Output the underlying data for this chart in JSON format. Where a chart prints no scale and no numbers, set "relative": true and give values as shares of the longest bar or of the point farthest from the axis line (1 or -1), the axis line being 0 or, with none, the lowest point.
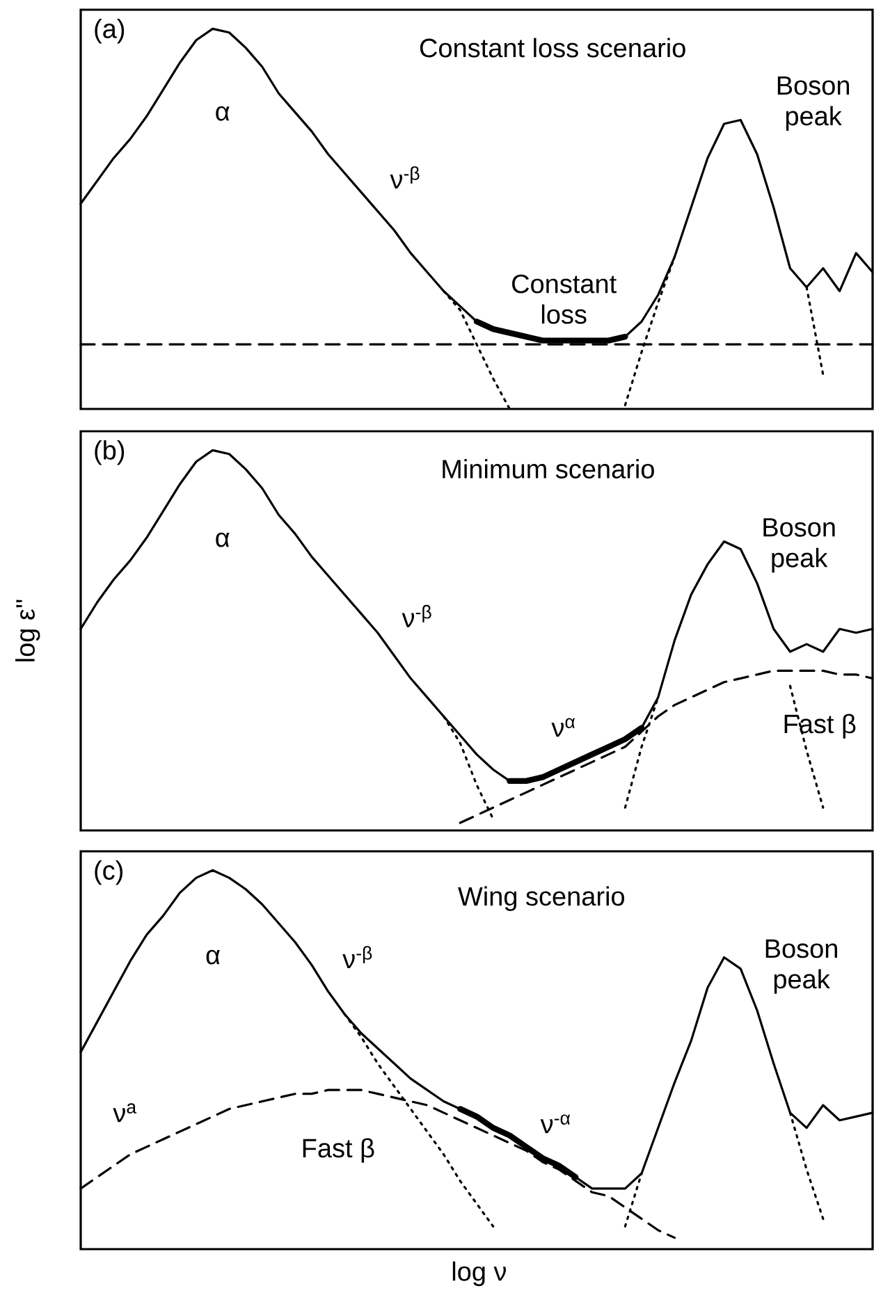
{
  "chart_data": [
    {
      "type": "line",
      "title": "Constant loss scenario",
      "relative": true,
      "tick_labels": false,
      "marker": "none",
      "categories": [
        null,
        null,
        null,
        null,
        null,
        null,
        null,
        null,
        null,
        null,
        null,
        null,
        null,
        null,
        null,
        null,
        null,
        null,
        null,
        null,
        null,
        null,
        null,
        null,
        null,
        null,
        null,
        null,
        null,
        null,
        null,
        null,
        null,
        null,
        null,
        null,
        null,
        null,
        null,
        null,
        null,
        null,
        null,
        null,
        null,
        null,
        null,
        null,
        null
      ],
      "annotations": [
        "(a)",
        "α",
        "ν$^{-β}$",
        "Constant loss",
        "Boson peak"
      ],
      "series": [
        {
          "color": "#000000",
          "line_style": "solid",
          "values": [
            0.54,
            0.6,
            0.66,
            0.71,
            0.77,
            0.84,
            0.91,
            0.97,
            1.0,
            0.99,
            0.95,
            0.9,
            0.83,
            0.78,
            0.73,
            0.67,
            0.62,
            0.57,
            0.52,
            0.47,
            0.41,
            0.36,
            0.31,
            0.27,
            0.23,
            0.21,
            0.2,
            0.19,
            0.18,
            0.18,
            0.18,
            0.18,
            0.18,
            0.19,
            0.23,
            0.3,
            0.4,
            0.53,
            0.66,
            0.75,
            0.76,
            0.67,
            0.53,
            0.37,
            0.32,
            0.37,
            0.31,
            0.41,
            0.36
          ]
        },
        {
          "color": "#000000",
          "line_style": "solid",
          "values": [
            null,
            null,
            null,
            null,
            null,
            null,
            null,
            null,
            null,
            null,
            null,
            null,
            null,
            null,
            null,
            null,
            null,
            null,
            null,
            null,
            null,
            null,
            null,
            null,
            0.23,
            0.21,
            0.2,
            0.19,
            0.18,
            0.18,
            0.18,
            0.18,
            0.18,
            0.19,
            null,
            null,
            null,
            null,
            null,
            null,
            null,
            null,
            null,
            null,
            null,
            null,
            null,
            null,
            null
          ]
        },
        {
          "color": "#000000",
          "line_style": "dashed",
          "values": [
            0.17,
            0.17,
            0.17,
            0.17,
            0.17,
            0.17,
            0.17,
            0.17,
            0.17,
            0.17,
            0.17,
            0.17,
            0.17,
            0.17,
            0.17,
            0.17,
            0.17,
            0.17,
            0.17,
            0.17,
            0.17,
            0.17,
            0.17,
            0.17,
            0.17,
            0.17,
            0.17,
            0.17,
            0.17,
            0.17,
            0.17,
            0.17,
            0.17,
            0.17,
            0.17,
            0.17,
            0.17,
            0.17,
            0.17,
            0.17,
            0.17,
            0.17,
            0.17,
            0.17,
            0.17,
            0.17,
            0.17,
            0.17,
            0.17
          ]
        },
        {
          "color": "#000000",
          "line_style": "dotted",
          "values": [
            null,
            null,
            null,
            null,
            null,
            null,
            null,
            null,
            null,
            null,
            null,
            null,
            null,
            null,
            null,
            null,
            null,
            null,
            null,
            null,
            null,
            null,
            0.31,
            0.26,
            0.17,
            0.08,
            0.0,
            null,
            null,
            null,
            null,
            null,
            null,
            null,
            null,
            null,
            null,
            null,
            null,
            null,
            null,
            null,
            null,
            null,
            null,
            null,
            null,
            null,
            null
          ]
        },
        {
          "color": "#000000",
          "line_style": "dotted",
          "values": [
            null,
            null,
            null,
            null,
            null,
            null,
            null,
            null,
            null,
            null,
            null,
            null,
            null,
            null,
            null,
            null,
            null,
            null,
            null,
            null,
            null,
            null,
            null,
            null,
            null,
            null,
            null,
            null,
            null,
            null,
            null,
            null,
            null,
            0.01,
            0.15,
            0.28,
            0.4,
            null,
            null,
            null,
            null,
            null,
            null,
            null,
            null,
            null,
            null,
            null,
            null
          ]
        },
        {
          "color": "#000000",
          "line_style": "dotted",
          "values": [
            null,
            null,
            null,
            null,
            null,
            null,
            null,
            null,
            null,
            null,
            null,
            null,
            null,
            null,
            null,
            null,
            null,
            null,
            null,
            null,
            null,
            null,
            null,
            null,
            null,
            null,
            null,
            null,
            null,
            null,
            null,
            null,
            null,
            null,
            null,
            null,
            null,
            null,
            null,
            null,
            null,
            null,
            null,
            null,
            0.32,
            0.09,
            null,
            null,
            null
          ]
        }
      ]
    },
    {
      "type": "line",
      "title": "Minimum scenario",
      "ylabel": "log ε''",
      "relative": true,
      "tick_labels": false,
      "marker": "none",
      "categories": [
        null,
        null,
        null,
        null,
        null,
        null,
        null,
        null,
        null,
        null,
        null,
        null,
        null,
        null,
        null,
        null,
        null,
        null,
        null,
        null,
        null,
        null,
        null,
        null,
        null,
        null,
        null,
        null,
        null,
        null,
        null,
        null,
        null,
        null,
        null,
        null,
        null,
        null,
        null,
        null,
        null,
        null,
        null,
        null,
        null,
        null,
        null,
        null,
        null
      ],
      "annotations": [
        "(b)",
        "α",
        "ν$^{-β}$",
        "ν$^{α}$",
        "Boson peak",
        "Fast β"
      ],
      "series": [
        {
          "color": "#000000",
          "line_style": "solid",
          "values": [
            0.53,
            0.6,
            0.66,
            0.71,
            0.77,
            0.84,
            0.91,
            0.97,
            1.0,
            0.99,
            0.95,
            0.9,
            0.83,
            0.78,
            0.72,
            0.67,
            0.62,
            0.57,
            0.52,
            0.46,
            0.4,
            0.35,
            0.3,
            0.25,
            0.2,
            0.16,
            0.13,
            0.13,
            0.14,
            0.16,
            0.18,
            0.2,
            0.22,
            0.24,
            0.27,
            0.35,
            0.5,
            0.62,
            0.7,
            0.76,
            0.74,
            0.65,
            0.53,
            0.47,
            0.49,
            0.47,
            0.53,
            0.52,
            0.53
          ]
        },
        {
          "color": "#000000",
          "line_style": "solid",
          "values": [
            null,
            null,
            null,
            null,
            null,
            null,
            null,
            null,
            null,
            null,
            null,
            null,
            null,
            null,
            null,
            null,
            null,
            null,
            null,
            null,
            null,
            null,
            null,
            null,
            null,
            null,
            0.13,
            0.13,
            0.14,
            0.16,
            0.18,
            0.2,
            0.22,
            0.24,
            0.27,
            null,
            null,
            null,
            null,
            null,
            null,
            null,
            null,
            null,
            null,
            null,
            null,
            null,
            null
          ]
        },
        {
          "color": "#000000",
          "line_style": "dashed",
          "values": [
            null,
            null,
            null,
            null,
            null,
            null,
            null,
            null,
            null,
            null,
            null,
            null,
            null,
            null,
            null,
            null,
            null,
            null,
            null,
            null,
            null,
            null,
            null,
            0.02,
            0.04,
            0.06,
            0.08,
            0.1,
            0.12,
            0.14,
            0.16,
            0.18,
            0.2,
            0.22,
            0.26,
            0.3,
            0.33,
            0.35,
            0.37,
            0.39,
            0.4,
            0.41,
            0.42,
            0.42,
            0.42,
            0.42,
            0.41,
            0.41,
            0.4
          ]
        },
        {
          "color": "#000000",
          "line_style": "dotted",
          "values": [
            null,
            null,
            null,
            null,
            null,
            null,
            null,
            null,
            null,
            null,
            null,
            null,
            null,
            null,
            null,
            null,
            null,
            null,
            null,
            null,
            null,
            null,
            0.3,
            0.23,
            0.12,
            0.03,
            null,
            null,
            null,
            null,
            null,
            null,
            null,
            null,
            null,
            null,
            null,
            null,
            null,
            null,
            null,
            null,
            null,
            null,
            null,
            null,
            null,
            null,
            null
          ]
        },
        {
          "color": "#000000",
          "line_style": "dotted",
          "values": [
            null,
            null,
            null,
            null,
            null,
            null,
            null,
            null,
            null,
            null,
            null,
            null,
            null,
            null,
            null,
            null,
            null,
            null,
            null,
            null,
            null,
            null,
            null,
            null,
            null,
            null,
            null,
            null,
            null,
            null,
            null,
            null,
            null,
            0.06,
            0.22,
            0.35,
            null,
            null,
            null,
            null,
            null,
            null,
            null,
            null,
            null,
            null,
            null,
            null,
            null
          ]
        },
        {
          "color": "#000000",
          "line_style": "dotted",
          "values": [
            null,
            null,
            null,
            null,
            null,
            null,
            null,
            null,
            null,
            null,
            null,
            null,
            null,
            null,
            null,
            null,
            null,
            null,
            null,
            null,
            null,
            null,
            null,
            null,
            null,
            null,
            null,
            null,
            null,
            null,
            null,
            null,
            null,
            null,
            null,
            null,
            null,
            null,
            null,
            null,
            null,
            null,
            null,
            0.38,
            0.21,
            0.06,
            null,
            null,
            null
          ]
        }
      ]
    },
    {
      "type": "line",
      "title": "Wing scenario",
      "xlabel": "log ν",
      "relative": true,
      "tick_labels": false,
      "marker": "none",
      "categories": [
        null,
        null,
        null,
        null,
        null,
        null,
        null,
        null,
        null,
        null,
        null,
        null,
        null,
        null,
        null,
        null,
        null,
        null,
        null,
        null,
        null,
        null,
        null,
        null,
        null,
        null,
        null,
        null,
        null,
        null,
        null,
        null,
        null,
        null,
        null,
        null,
        null,
        null,
        null,
        null,
        null,
        null,
        null,
        null,
        null,
        null,
        null,
        null,
        null
      ],
      "annotations": [
        "(c)",
        "α",
        "ν$^{-β}$",
        "ν$^{a}$",
        "Fast β",
        "ν$^{-α}$",
        "Boson peak"
      ],
      "series": [
        {
          "color": "#000000",
          "line_style": "solid",
          "values": [
            0.52,
            0.6,
            0.68,
            0.76,
            0.83,
            0.88,
            0.94,
            0.98,
            1.0,
            0.98,
            0.95,
            0.91,
            0.86,
            0.81,
            0.75,
            0.68,
            0.62,
            0.57,
            0.53,
            0.49,
            0.45,
            0.42,
            0.39,
            0.37,
            0.35,
            0.32,
            0.3,
            0.27,
            0.24,
            0.22,
            0.19,
            0.16,
            0.16,
            0.16,
            0.2,
            0.32,
            0.44,
            0.55,
            0.69,
            0.77,
            0.74,
            0.63,
            0.49,
            0.36,
            0.32,
            0.38,
            0.34,
            0.35,
            0.36
          ]
        },
        {
          "color": "#000000",
          "line_style": "solid",
          "values": [
            null,
            null,
            null,
            null,
            null,
            null,
            null,
            null,
            null,
            null,
            null,
            null,
            null,
            null,
            null,
            null,
            null,
            null,
            null,
            null,
            null,
            null,
            null,
            0.37,
            0.35,
            0.32,
            0.3,
            0.27,
            0.24,
            0.22,
            0.19,
            null,
            null,
            null,
            null,
            null,
            null,
            null,
            null,
            null,
            null,
            null,
            null,
            null,
            null,
            null,
            null,
            null,
            null
          ]
        },
        {
          "color": "#000000",
          "line_style": "dashed",
          "values": [
            0.16,
            0.19,
            0.22,
            0.25,
            0.27,
            0.29,
            0.31,
            0.33,
            0.35,
            0.37,
            0.38,
            0.39,
            0.4,
            0.41,
            0.41,
            0.42,
            0.42,
            0.42,
            0.41,
            0.4,
            0.39,
            0.38,
            0.36,
            0.34,
            0.32,
            0.3,
            0.28,
            0.26,
            0.23,
            0.21,
            0.18,
            0.15,
            0.14,
            0.11,
            0.08,
            0.05,
            0.03,
            null,
            null,
            null,
            null,
            null,
            null,
            null,
            null,
            null,
            null,
            null,
            null
          ]
        },
        {
          "color": "#000000",
          "line_style": "dotted",
          "values": [
            null,
            null,
            null,
            null,
            null,
            null,
            null,
            null,
            null,
            null,
            null,
            null,
            null,
            null,
            null,
            null,
            0.62,
            0.56,
            0.49,
            0.43,
            0.37,
            0.31,
            0.25,
            0.18,
            0.12,
            0.06,
            null,
            null,
            null,
            null,
            null,
            null,
            null,
            null,
            null,
            null,
            null,
            null,
            null,
            null,
            null,
            null,
            null,
            null,
            null,
            null,
            null,
            null,
            null
          ]
        },
        {
          "color": "#000000",
          "line_style": "dotted",
          "values": [
            null,
            null,
            null,
            null,
            null,
            null,
            null,
            null,
            null,
            null,
            null,
            null,
            null,
            null,
            null,
            null,
            null,
            null,
            null,
            null,
            null,
            null,
            null,
            null,
            null,
            null,
            null,
            null,
            null,
            null,
            null,
            null,
            null,
            0.06,
            0.2,
            null,
            null,
            null,
            null,
            null,
            null,
            null,
            null,
            null,
            null,
            null,
            null,
            null,
            null
          ]
        },
        {
          "color": "#000000",
          "line_style": "dotted",
          "values": [
            null,
            null,
            null,
            null,
            null,
            null,
            null,
            null,
            null,
            null,
            null,
            null,
            null,
            null,
            null,
            null,
            null,
            null,
            null,
            null,
            null,
            null,
            null,
            null,
            null,
            null,
            null,
            null,
            null,
            null,
            null,
            null,
            null,
            null,
            null,
            null,
            null,
            null,
            null,
            null,
            null,
            null,
            null,
            0.36,
            0.21,
            0.08,
            null,
            null,
            null
          ]
        }
      ]
    }
  ]
}
